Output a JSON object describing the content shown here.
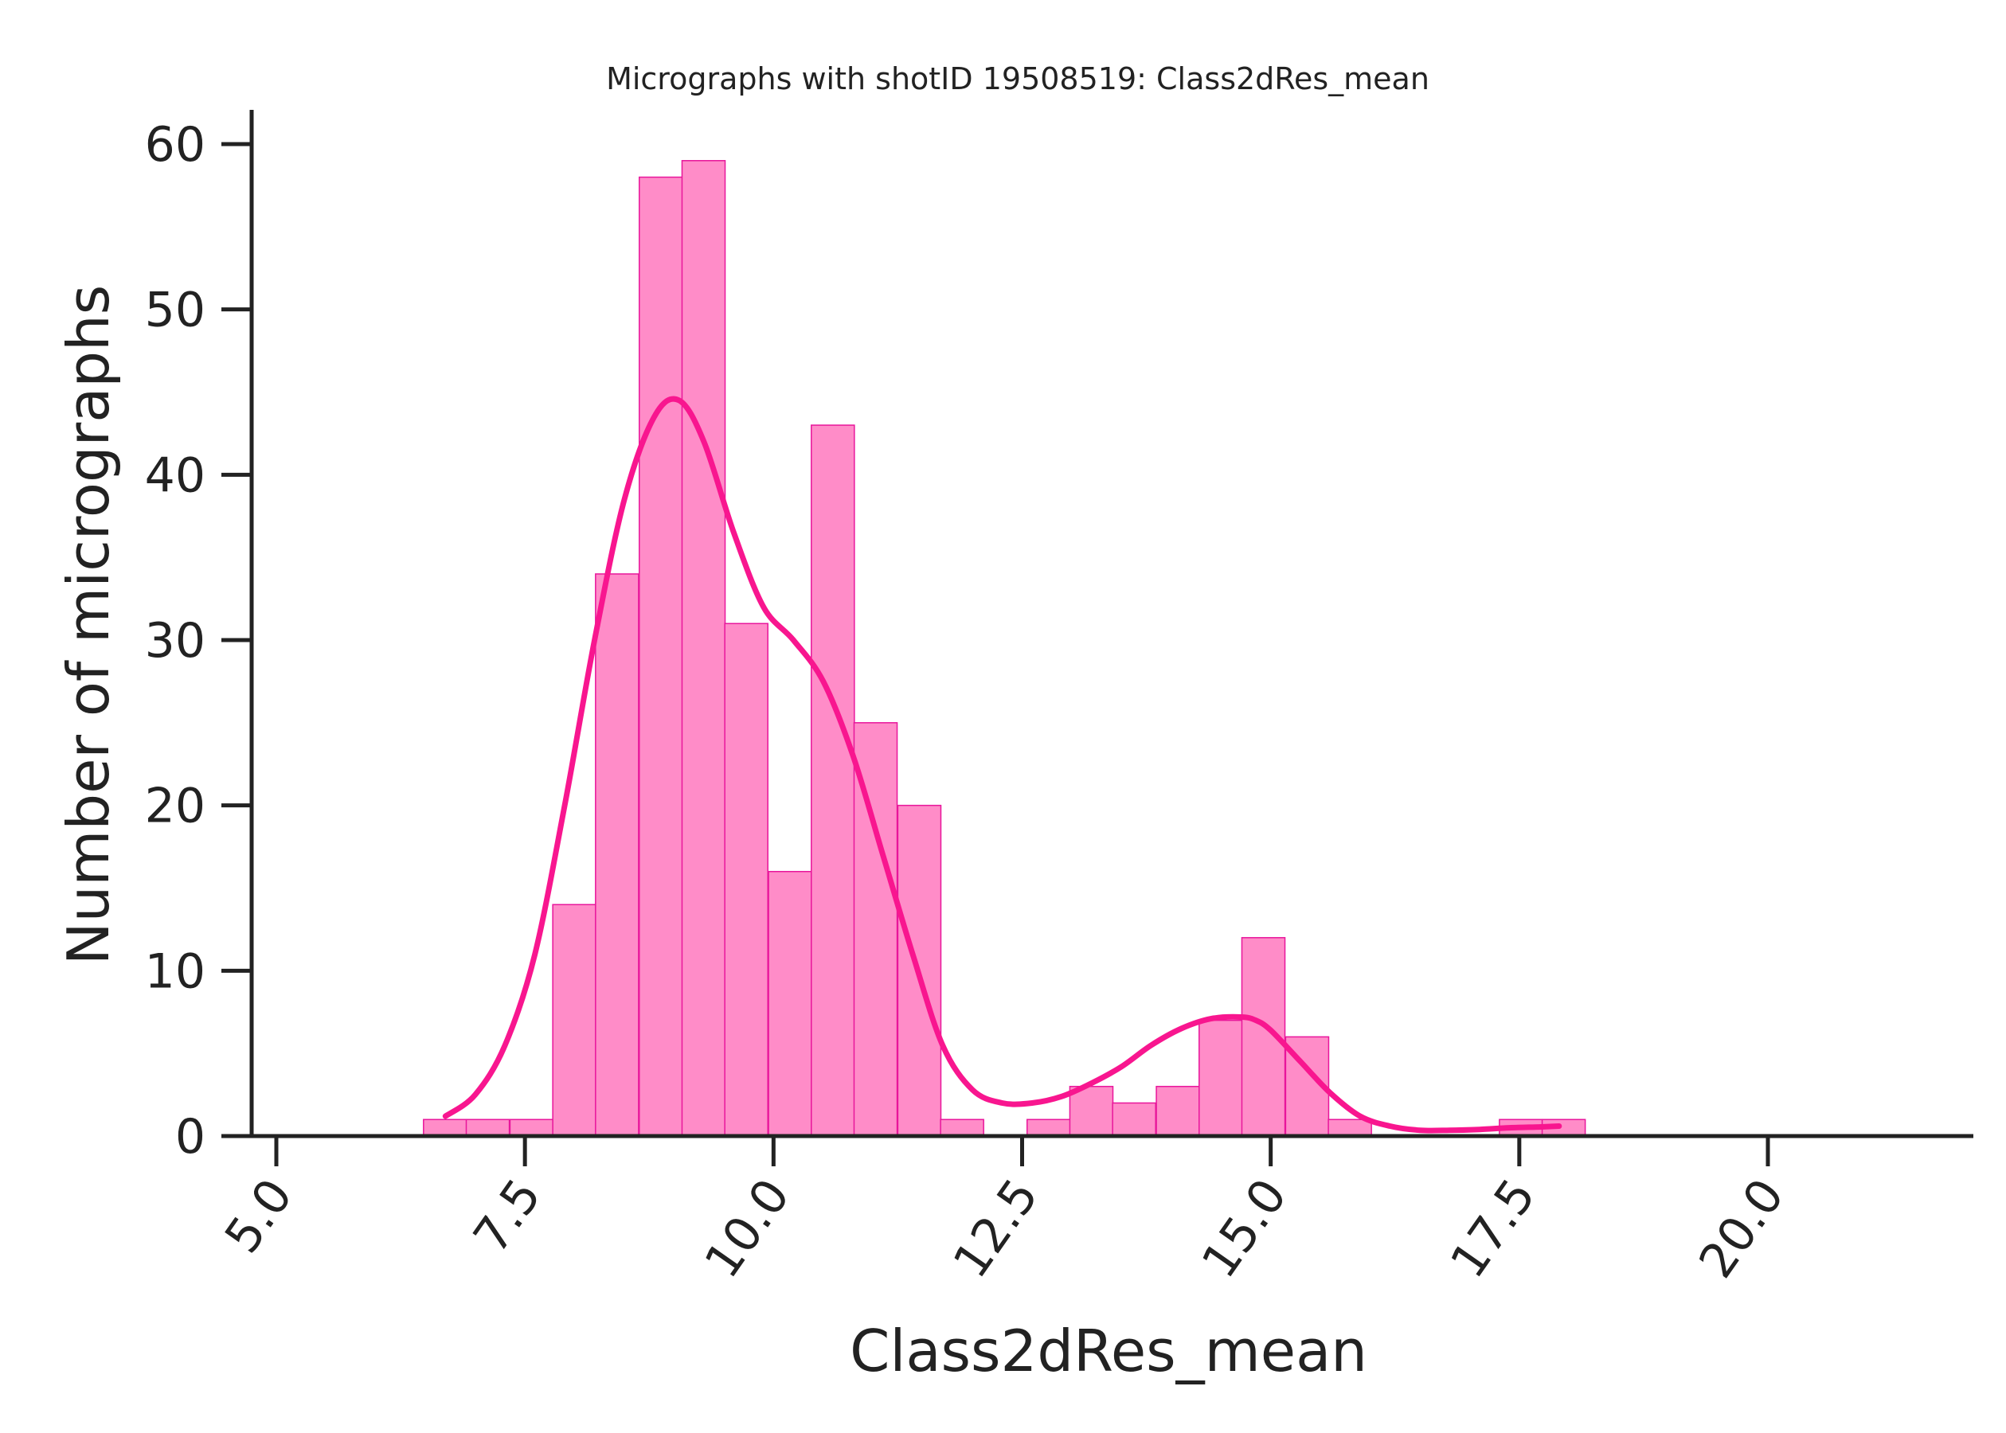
{
  "chart_data": {
    "type": "bar",
    "title": "Micrographs with shotID 19508519: Class2dRes_mean",
    "xlabel": "Class2dRes_mean",
    "ylabel": "Number of micrographs",
    "xlim": [
      4.6,
      21.95
    ],
    "ylim": [
      0,
      62
    ],
    "x_ticks": [
      5.0,
      7.5,
      10.0,
      12.5,
      15.0,
      17.5,
      20.0
    ],
    "x_tick_labels": [
      "5.0",
      "7.5",
      "10.0",
      "12.5",
      "15.0",
      "17.5",
      "20.0"
    ],
    "y_ticks": [
      0,
      10,
      20,
      30,
      40,
      50,
      60
    ],
    "y_tick_labels": [
      "0",
      "10",
      "20",
      "30",
      "40",
      "50",
      "60"
    ],
    "bin_width": 0.433,
    "bins": [
      {
        "x0": 6.48,
        "count": 1
      },
      {
        "x0": 6.91,
        "count": 1
      },
      {
        "x0": 7.35,
        "count": 1
      },
      {
        "x0": 7.78,
        "count": 14
      },
      {
        "x0": 8.21,
        "count": 34
      },
      {
        "x0": 8.65,
        "count": 58
      },
      {
        "x0": 9.08,
        "count": 59
      },
      {
        "x0": 9.51,
        "count": 31
      },
      {
        "x0": 9.95,
        "count": 16
      },
      {
        "x0": 10.38,
        "count": 43
      },
      {
        "x0": 10.81,
        "count": 25
      },
      {
        "x0": 11.25,
        "count": 20
      },
      {
        "x0": 11.68,
        "count": 1
      },
      {
        "x0": 12.55,
        "count": 1
      },
      {
        "x0": 12.98,
        "count": 3
      },
      {
        "x0": 13.41,
        "count": 2
      },
      {
        "x0": 13.85,
        "count": 3
      },
      {
        "x0": 14.28,
        "count": 7
      },
      {
        "x0": 14.71,
        "count": 12
      },
      {
        "x0": 15.15,
        "count": 6
      },
      {
        "x0": 15.58,
        "count": 1
      },
      {
        "x0": 17.3,
        "count": 1
      },
      {
        "x0": 17.73,
        "count": 1
      }
    ],
    "kde": {
      "x": [
        6.7,
        7.0,
        7.3,
        7.6,
        7.9,
        8.2,
        8.5,
        8.8,
        9.05,
        9.3,
        9.6,
        9.9,
        10.2,
        10.5,
        10.8,
        11.1,
        11.4,
        11.7,
        12.0,
        12.3,
        12.6,
        12.9,
        13.2,
        13.5,
        13.8,
        14.1,
        14.4,
        14.7,
        14.85,
        15.0,
        15.3,
        15.6,
        15.9,
        16.2,
        16.5,
        16.8,
        17.1,
        17.4,
        17.7,
        17.9
      ],
      "y": [
        1.2,
        2.5,
        5.5,
        11,
        20,
        30,
        38.5,
        43.5,
        44.5,
        42,
        36.5,
        32,
        30,
        27.5,
        23,
        17,
        11,
        5.5,
        2.8,
        2.0,
        2.0,
        2.4,
        3.2,
        4.2,
        5.5,
        6.5,
        7.1,
        7.2,
        7.0,
        6.4,
        4.5,
        2.6,
        1.2,
        0.6,
        0.35,
        0.35,
        0.4,
        0.5,
        0.55,
        0.6
      ]
    },
    "colors": {
      "bar_fill": "#ff8cc8",
      "bar_edge": "#e8169b",
      "kde_line": "#f8168f"
    },
    "grid": false,
    "legend": "none"
  }
}
